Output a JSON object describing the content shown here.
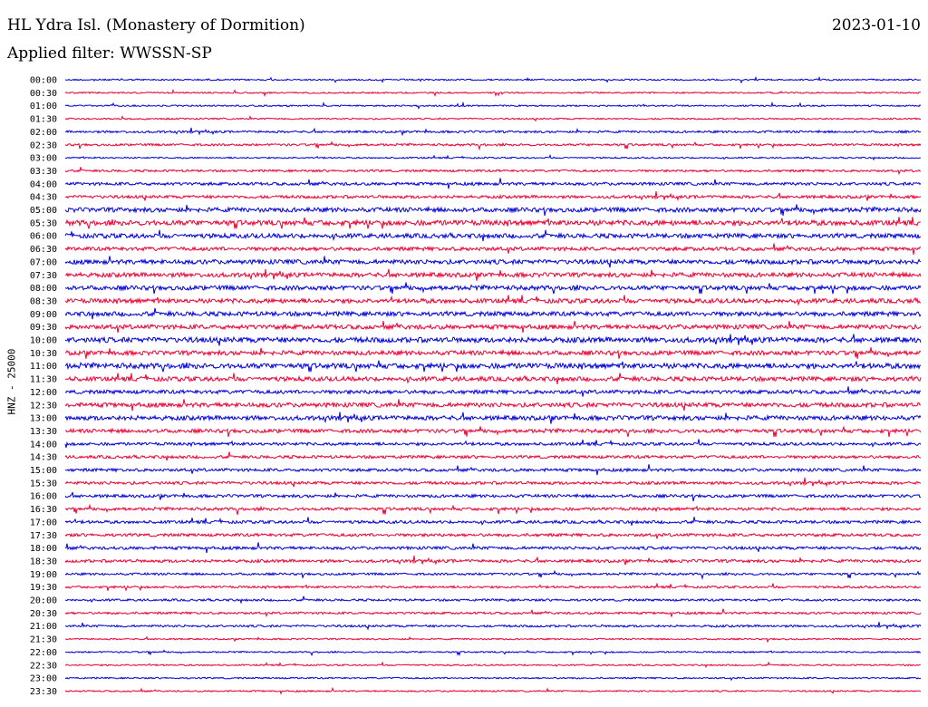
{
  "header": {
    "station": "HL Ydra Isl. (Monastery of Dormition)",
    "date": "2023-01-10",
    "filter": "Applied filter: WWSSN-SP"
  },
  "channel_label": "HNZ - 25000",
  "colors": {
    "blue": "#0000dd",
    "red": "#ee0033"
  },
  "chart_data": {
    "type": "line",
    "title": "HL Ydra Isl. (Monastery of Dormition)",
    "subtitle": "Applied filter: WWSSN-SP",
    "ylabel": "HNZ - 25000",
    "tick_labels": [
      "00:00",
      "00:30",
      "01:00",
      "01:30",
      "02:00",
      "02:30",
      "03:00",
      "03:30",
      "04:00",
      "04:30",
      "05:00",
      "05:30",
      "06:00",
      "06:30",
      "07:00",
      "07:30",
      "08:00",
      "08:30",
      "09:00",
      "09:30",
      "10:00",
      "10:30",
      "11:00",
      "11:30",
      "12:00",
      "12:30",
      "13:00",
      "13:30",
      "14:00",
      "14:30",
      "15:00",
      "15:30",
      "16:00",
      "16:30",
      "17:00",
      "17:30",
      "18:00",
      "18:30",
      "19:00",
      "19:30",
      "20:00",
      "20:30",
      "21:00",
      "21:30",
      "22:00",
      "22:30",
      "23:00",
      "23:30"
    ],
    "trace_colors": [
      "blue",
      "red"
    ],
    "noise_level": [
      1,
      1,
      1,
      1,
      1.5,
      1.5,
      1,
      1.5,
      2,
      2,
      3,
      3.5,
      3,
      2.5,
      3,
      3,
      3,
      3,
      3,
      3,
      3.5,
      3,
      3.5,
      3,
      2.5,
      3,
      3,
      2.5,
      2,
      2,
      2,
      2,
      2,
      2,
      2,
      2,
      2,
      2,
      1.5,
      1.5,
      1.5,
      1.5,
      1.5,
      1,
      1,
      1,
      1,
      1
    ]
  }
}
